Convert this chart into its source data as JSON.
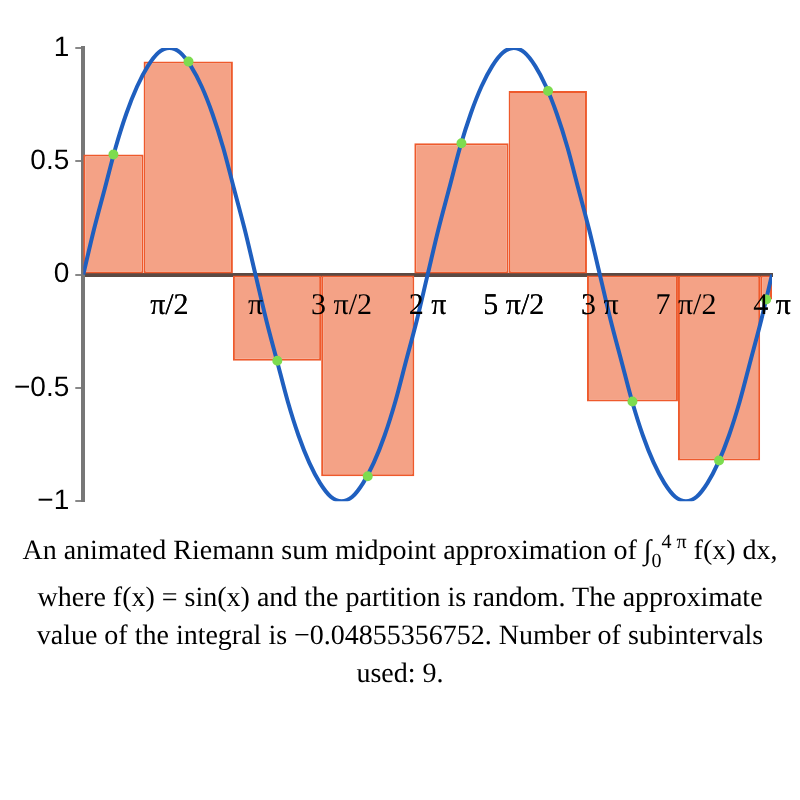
{
  "chart_data": {
    "type": "histogram",
    "title": "An animated Riemann sum midpoint approximation of ∫$_{0}$$^{4 π}$ f(x) dx, where f(x) = sin(x) and the partition is random.  The approximate value of the integral is −0.04855356752.  Number of subintervals used: 9.",
    "xlim": [
      0,
      12.566
    ],
    "ylim": [
      -1,
      1
    ],
    "xticks": [
      {
        "value": 1.571,
        "label": "π/2"
      },
      {
        "value": 3.142,
        "label": "π"
      },
      {
        "value": 4.712,
        "label": "3 π/2"
      },
      {
        "value": 6.283,
        "label": "2 π"
      },
      {
        "value": 7.854,
        "label": "5 π/2"
      },
      {
        "value": 9.425,
        "label": "3 π"
      },
      {
        "value": 10.996,
        "label": "7 π/2"
      },
      {
        "value": 12.566,
        "label": "4 π"
      }
    ],
    "yticks": [
      {
        "value": -1,
        "label": "−1"
      },
      {
        "value": -0.5,
        "label": "−0.5"
      },
      0,
      0.5,
      1
    ],
    "grid": false,
    "legend": false,
    "series": [
      {
        "color": "#f4a286",
        "bins": [
          0,
          1.1,
          2.73,
          4.34,
          6.04,
          7.76,
          9.19,
          10.85,
          12.35,
          12.566
        ],
        "values": [
          0.53,
          0.94,
          -0.38,
          -0.89,
          0.58,
          0.81,
          -0.56,
          -0.82,
          -0.11
        ]
      },
      {
        "type": "line",
        "color": "#1f5fbf",
        "marker": "none",
        "x": [
          0,
          0.196,
          0.393,
          0.589,
          0.785,
          0.982,
          1.178,
          1.374,
          1.571,
          1.767,
          1.963,
          2.16,
          2.356,
          2.553,
          2.749,
          2.945,
          3.142,
          3.338,
          3.534,
          3.731,
          3.927,
          4.123,
          4.32,
          4.516,
          4.712,
          4.909,
          5.105,
          5.301,
          5.498,
          5.694,
          5.89,
          6.087,
          6.283,
          6.48,
          6.676,
          6.872,
          7.069,
          7.265,
          7.461,
          7.658,
          7.854,
          8.05,
          8.247,
          8.443,
          8.639,
          8.836,
          9.032,
          9.228,
          9.425,
          9.621,
          9.817,
          10.014,
          10.21,
          10.407,
          10.603,
          10.799,
          10.996,
          11.192,
          11.388,
          11.585,
          11.781,
          11.977,
          12.174,
          12.37,
          12.566
        ],
        "values": [
          0,
          0.2,
          0.38,
          0.56,
          0.71,
          0.83,
          0.92,
          0.98,
          1,
          0.98,
          0.92,
          0.83,
          0.71,
          0.56,
          0.38,
          0.2,
          0,
          -0.2,
          -0.38,
          -0.56,
          -0.71,
          -0.83,
          -0.92,
          -0.98,
          -1,
          -0.98,
          -0.92,
          -0.83,
          -0.71,
          -0.56,
          -0.38,
          -0.2,
          0,
          0.2,
          0.38,
          0.56,
          0.71,
          0.83,
          0.92,
          0.98,
          1,
          0.98,
          0.92,
          0.83,
          0.71,
          0.56,
          0.38,
          0.2,
          0,
          -0.2,
          -0.38,
          -0.56,
          -0.71,
          -0.83,
          -0.92,
          -0.98,
          -1,
          -0.98,
          -0.92,
          -0.83,
          -0.71,
          -0.56,
          -0.38,
          -0.2,
          0
        ]
      },
      {
        "type": "scatter",
        "color": "#7ddc4f",
        "marker": "circle",
        "x": [
          0.55,
          1.92,
          3.54,
          5.19,
          6.9,
          8.48,
          10.02,
          11.6,
          12.46
        ],
        "values": [
          0.53,
          0.94,
          -0.38,
          -0.89,
          0.58,
          0.81,
          -0.56,
          -0.82,
          -0.11
        ]
      }
    ]
  }
}
